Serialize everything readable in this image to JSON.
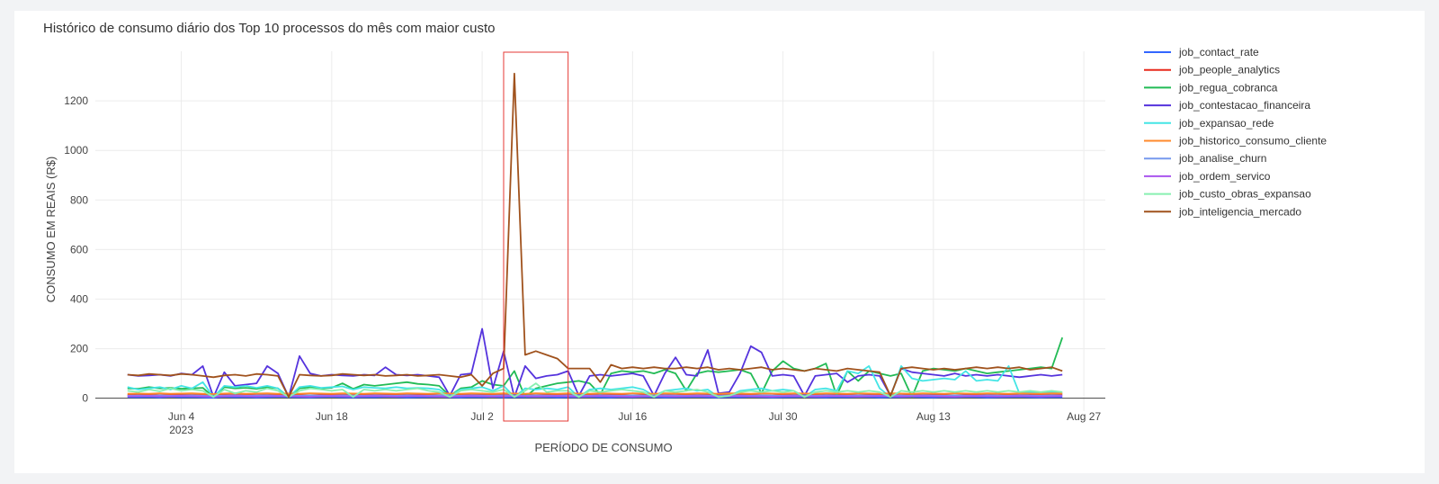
{
  "chart_data": {
    "type": "line",
    "title": "Histórico de consumo diário dos Top 10 processos do mês com maior custo",
    "xlabel": "PERÍODO DE CONSUMO",
    "ylabel": "CONSUMO EM REAIS (R$)",
    "x_start": "2023-05-30",
    "x_range": [
      "2023-05-27",
      "2023-08-29"
    ],
    "ylim": [
      -52,
      1400
    ],
    "yticks": [
      0,
      200,
      400,
      600,
      800,
      1000,
      1200
    ],
    "xticks": [
      {
        "date": "2023-06-04",
        "label": "Jun 4",
        "sublabel": "2023"
      },
      {
        "date": "2023-06-18",
        "label": "Jun 18",
        "sublabel": ""
      },
      {
        "date": "2023-07-02",
        "label": "Jul 2",
        "sublabel": ""
      },
      {
        "date": "2023-07-16",
        "label": "Jul 16",
        "sublabel": ""
      },
      {
        "date": "2023-07-30",
        "label": "Jul 30",
        "sublabel": ""
      },
      {
        "date": "2023-08-13",
        "label": "Aug 13",
        "sublabel": ""
      },
      {
        "date": "2023-08-27",
        "label": "Aug 27",
        "sublabel": ""
      }
    ],
    "grid": true,
    "legend_position": "right",
    "highlight": {
      "x_from": "2023-07-04",
      "x_to": "2023-07-10",
      "color": "#e53935"
    },
    "series": [
      {
        "name": "job_contact_rate",
        "color": "#3366ff",
        "values": [
          5,
          4,
          5,
          3,
          6,
          4,
          5,
          3,
          2,
          6,
          4,
          5,
          3,
          4,
          6,
          5,
          4,
          3,
          5,
          6,
          4,
          3,
          5,
          4,
          6,
          5,
          3,
          4,
          5,
          6,
          4,
          3,
          5,
          4,
          6,
          3,
          5,
          4,
          6,
          5,
          3,
          4,
          5,
          6,
          4,
          3,
          5,
          4,
          6,
          5,
          3,
          4,
          5,
          6,
          4,
          3,
          5,
          4,
          6,
          5,
          3,
          4,
          5,
          6,
          4,
          3,
          5,
          4,
          6,
          5,
          3,
          4,
          5,
          6,
          4,
          3,
          5,
          4,
          6,
          5,
          3,
          4,
          5,
          6,
          4,
          3,
          5,
          4
        ]
      },
      {
        "name": "job_people_analytics",
        "color": "#e8291c",
        "values": [
          14,
          14,
          15,
          13,
          14,
          15,
          14,
          13,
          12,
          14,
          15,
          14,
          13,
          14,
          15,
          14,
          13,
          12,
          14,
          15,
          14,
          13,
          14,
          15,
          14,
          13,
          14,
          15,
          14,
          13,
          12,
          14,
          15,
          14,
          13,
          14,
          15,
          14,
          13,
          14,
          15,
          14,
          13,
          14,
          15,
          14,
          13,
          12,
          14,
          15,
          14,
          13,
          14,
          15,
          14,
          13,
          14,
          15,
          14,
          13,
          12,
          14,
          15,
          14,
          13,
          14,
          15,
          14,
          13,
          14,
          15,
          14,
          13,
          14,
          15,
          14,
          13,
          12,
          14,
          15,
          14,
          13,
          14,
          15,
          14,
          13,
          14,
          15
        ]
      },
      {
        "name": "job_regua_cobranca",
        "color": "#22bb55",
        "values": [
          40,
          38,
          45,
          40,
          42,
          38,
          40,
          42,
          5,
          45,
          40,
          42,
          38,
          45,
          40,
          5,
          40,
          45,
          40,
          42,
          60,
          38,
          55,
          50,
          55,
          60,
          65,
          58,
          55,
          50,
          10,
          40,
          45,
          70,
          55,
          50,
          110,
          5,
          40,
          50,
          60,
          65,
          70,
          60,
          15,
          100,
          110,
          105,
          110,
          100,
          115,
          100,
          30,
          100,
          110,
          105,
          110,
          115,
          100,
          20,
          110,
          150,
          120,
          110,
          120,
          140,
          10,
          110,
          70,
          110,
          100,
          90,
          100,
          5,
          110,
          120,
          115,
          110,
          120,
          110,
          100,
          105,
          110,
          115,
          120,
          125,
          120,
          245
        ]
      },
      {
        "name": "job_contestacao_financeira",
        "color": "#5533dd",
        "values": [
          95,
          90,
          92,
          95,
          90,
          100,
          95,
          130,
          5,
          105,
          50,
          55,
          60,
          130,
          100,
          5,
          170,
          100,
          90,
          95,
          92,
          90,
          95,
          92,
          125,
          95,
          92,
          95,
          90,
          85,
          10,
          95,
          100,
          280,
          40,
          190,
          5,
          130,
          80,
          90,
          95,
          110,
          10,
          90,
          95,
          90,
          95,
          100,
          90,
          10,
          100,
          165,
          95,
          90,
          195,
          20,
          25,
          100,
          210,
          185,
          90,
          95,
          90,
          10,
          90,
          95,
          100,
          65,
          90,
          95,
          90,
          10,
          120,
          105,
          100,
          95,
          90,
          100,
          90,
          95,
          90,
          95,
          90,
          85,
          90,
          95,
          90,
          95
        ]
      },
      {
        "name": "job_expansao_rede",
        "color": "#44e5e5",
        "values": [
          45,
          35,
          40,
          45,
          35,
          50,
          40,
          65,
          5,
          50,
          45,
          50,
          42,
          50,
          40,
          5,
          45,
          50,
          42,
          45,
          48,
          35,
          45,
          42,
          40,
          45,
          40,
          42,
          40,
          35,
          10,
          35,
          40,
          45,
          30,
          50,
          5,
          40,
          35,
          40,
          35,
          45,
          5,
          35,
          40,
          35,
          40,
          45,
          35,
          10,
          30,
          35,
          40,
          30,
          35,
          5,
          10,
          30,
          35,
          40,
          30,
          35,
          30,
          5,
          35,
          40,
          30,
          110,
          100,
          130,
          40,
          5,
          130,
          80,
          70,
          75,
          80,
          75,
          110,
          70,
          75,
          70,
          130,
          20,
          25,
          20,
          25,
          20
        ]
      },
      {
        "name": "job_historico_consumo_cliente",
        "color": "#ff8a2b",
        "values": [
          18,
          19,
          18,
          20,
          18,
          19,
          20,
          18,
          17,
          19,
          20,
          18,
          19,
          20,
          18,
          19,
          18,
          20,
          19,
          18,
          20,
          19,
          18,
          20,
          19,
          18,
          20,
          19,
          18,
          20,
          19,
          18,
          20,
          19,
          18,
          20,
          19,
          18,
          20,
          19,
          18,
          20,
          19,
          18,
          20,
          19,
          18,
          20,
          19,
          18,
          20,
          19,
          18,
          20,
          19,
          18,
          20,
          19,
          18,
          20,
          19,
          18,
          20,
          19,
          18,
          20,
          19,
          18,
          20,
          19,
          18,
          20,
          19,
          18,
          20,
          19,
          18,
          20,
          19,
          18,
          20,
          19,
          18,
          20,
          19,
          18,
          20,
          19
        ]
      },
      {
        "name": "job_analise_churn",
        "color": "#7799ee",
        "values": [
          10,
          11,
          10,
          12,
          10,
          11,
          12,
          10,
          9,
          11,
          12,
          10,
          11,
          12,
          10,
          11,
          10,
          12,
          11,
          10,
          12,
          11,
          10,
          12,
          11,
          10,
          12,
          11,
          10,
          12,
          11,
          10,
          12,
          11,
          10,
          12,
          11,
          10,
          12,
          11,
          10,
          12,
          11,
          10,
          12,
          11,
          10,
          12,
          11,
          10,
          12,
          11,
          10,
          12,
          11,
          10,
          12,
          11,
          10,
          12,
          11,
          10,
          12,
          11,
          10,
          12,
          11,
          10,
          12,
          11,
          10,
          12,
          11,
          10,
          12,
          11,
          10,
          12,
          11,
          10,
          12,
          11,
          10,
          12,
          11,
          10,
          12,
          11
        ]
      },
      {
        "name": "job_ordem_servico",
        "color": "#aa55ee",
        "values": [
          8,
          8,
          9,
          7,
          8,
          9,
          8,
          7,
          6,
          8,
          9,
          8,
          7,
          8,
          9,
          8,
          7,
          6,
          8,
          9,
          8,
          7,
          8,
          9,
          8,
          7,
          8,
          9,
          8,
          7,
          6,
          8,
          9,
          8,
          7,
          8,
          9,
          8,
          7,
          8,
          9,
          8,
          7,
          8,
          9,
          8,
          7,
          6,
          8,
          9,
          8,
          7,
          8,
          9,
          8,
          7,
          8,
          9,
          8,
          7,
          6,
          8,
          9,
          8,
          7,
          8,
          9,
          8,
          7,
          8,
          9,
          8,
          7,
          8,
          9,
          8,
          7,
          6,
          8,
          9,
          8,
          7,
          8,
          9,
          8,
          7,
          8,
          9
        ]
      },
      {
        "name": "job_custo_obras_expansao",
        "color": "#88f0b0",
        "values": [
          30,
          25,
          35,
          28,
          40,
          30,
          35,
          30,
          5,
          35,
          20,
          30,
          25,
          40,
          30,
          5,
          30,
          40,
          35,
          30,
          35,
          5,
          35,
          30,
          35,
          30,
          35,
          40,
          30,
          25,
          5,
          30,
          35,
          30,
          25,
          35,
          5,
          30,
          60,
          25,
          30,
          30,
          5,
          30,
          25,
          30,
          35,
          30,
          25,
          5,
          30,
          25,
          30,
          35,
          25,
          5,
          10,
          25,
          30,
          25,
          30,
          25,
          30,
          5,
          25,
          30,
          25,
          30,
          25,
          30,
          25,
          5,
          30,
          25,
          30,
          25,
          30,
          25,
          30,
          25,
          30,
          25,
          30,
          25,
          30,
          25,
          30,
          25
        ]
      },
      {
        "name": "job_inteligencia_mercado",
        "color": "#a0521d",
        "values": [
          95,
          92,
          98,
          95,
          92,
          98,
          95,
          90,
          85,
          92,
          95,
          90,
          98,
          95,
          90,
          5,
          95,
          92,
          90,
          92,
          98,
          95,
          92,
          95,
          90,
          92,
          95,
          90,
          92,
          95,
          90,
          85,
          95,
          50,
          100,
          120,
          1310,
          175,
          190,
          175,
          160,
          120,
          120,
          120,
          65,
          135,
          120,
          125,
          120,
          125,
          120,
          120,
          125,
          120,
          125,
          115,
          120,
          115,
          120,
          125,
          115,
          120,
          115,
          110,
          120,
          115,
          110,
          120,
          115,
          110,
          105,
          10,
          120,
          125,
          120,
          115,
          120,
          115,
          120,
          125,
          120,
          125,
          120,
          125,
          115,
          120,
          125,
          110
        ]
      }
    ]
  }
}
